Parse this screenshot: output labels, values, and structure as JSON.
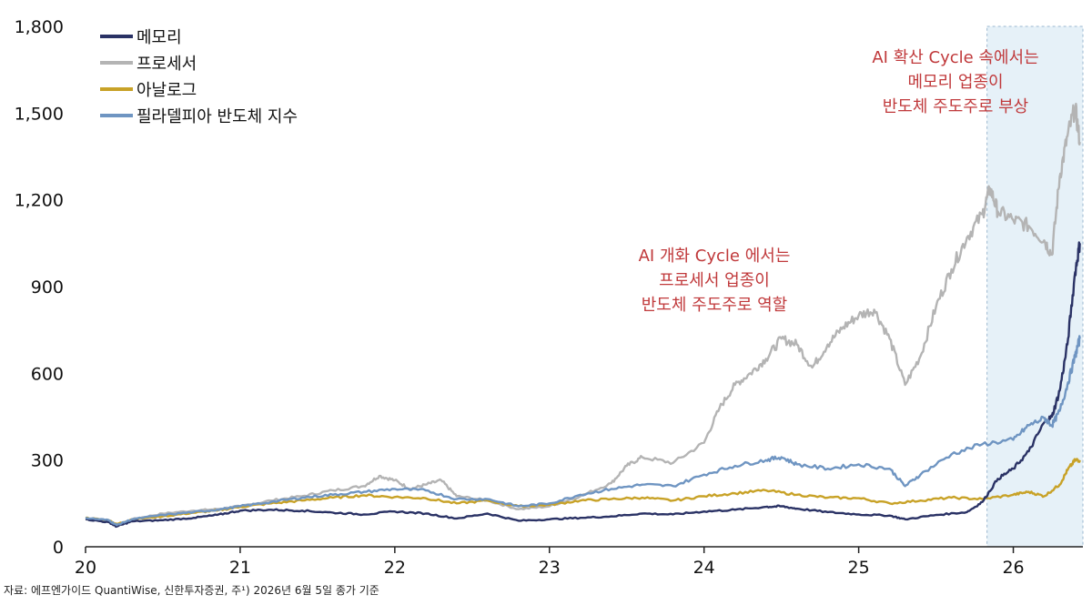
{
  "chart_data": {
    "type": "line",
    "xlim": [
      20,
      26.45
    ],
    "ylim": [
      0,
      1800
    ],
    "x_ticks": [
      20,
      21,
      22,
      23,
      24,
      25,
      26
    ],
    "x_tick_labels": [
      "20",
      "21",
      "22",
      "23",
      "24",
      "25",
      "26"
    ],
    "y_ticks": [
      0,
      300,
      600,
      900,
      1200,
      1500,
      1800
    ],
    "y_tick_labels": [
      "0",
      "300",
      "600",
      "900",
      "1,200",
      "1,500",
      "1,800"
    ],
    "legend_position": "top-left",
    "highlight_range": [
      25.83,
      26.45
    ],
    "series": [
      {
        "name": "메모리",
        "color": "#2a3265",
        "x": [
          20.0,
          20.15,
          20.2,
          20.3,
          20.5,
          20.7,
          20.85,
          21.0,
          21.2,
          21.4,
          21.6,
          21.8,
          22.0,
          22.2,
          22.4,
          22.6,
          22.8,
          23.0,
          23.2,
          23.4,
          23.6,
          23.8,
          24.0,
          24.2,
          24.4,
          24.5,
          24.6,
          24.8,
          25.0,
          25.2,
          25.3,
          25.5,
          25.7,
          25.8,
          25.9,
          26.0,
          26.1,
          26.2,
          26.25,
          26.3,
          26.35,
          26.4,
          26.43
        ],
        "values": [
          95,
          85,
          70,
          88,
          92,
          100,
          110,
          125,
          128,
          125,
          118,
          112,
          122,
          115,
          98,
          115,
          90,
          95,
          100,
          105,
          115,
          112,
          122,
          128,
          138,
          140,
          132,
          120,
          112,
          108,
          95,
          110,
          120,
          155,
          235,
          270,
          330,
          430,
          450,
          540,
          700,
          950,
          1050
        ]
      },
      {
        "name": "프로세서",
        "color": "#b4b4b4",
        "x": [
          20.0,
          20.15,
          20.2,
          20.3,
          20.5,
          20.7,
          20.85,
          21.0,
          21.2,
          21.4,
          21.6,
          21.8,
          21.9,
          22.0,
          22.1,
          22.2,
          22.3,
          22.4,
          22.6,
          22.8,
          23.0,
          23.2,
          23.4,
          23.5,
          23.6,
          23.8,
          24.0,
          24.1,
          24.2,
          24.3,
          24.4,
          24.5,
          24.6,
          24.7,
          24.8,
          24.9,
          25.0,
          25.1,
          25.2,
          25.3,
          25.4,
          25.5,
          25.6,
          25.7,
          25.8,
          25.85,
          25.9,
          26.0,
          26.1,
          26.2,
          26.25,
          26.3,
          26.35,
          26.4,
          26.43
        ],
        "values": [
          95,
          90,
          72,
          95,
          115,
          125,
          130,
          140,
          160,
          175,
          195,
          210,
          245,
          230,
          200,
          215,
          230,
          175,
          160,
          130,
          140,
          175,
          220,
          280,
          310,
          290,
          360,
          480,
          560,
          600,
          650,
          720,
          700,
          620,
          700,
          760,
          800,
          820,
          720,
          560,
          660,
          830,
          960,
          1070,
          1150,
          1240,
          1160,
          1130,
          1110,
          1060,
          1010,
          1280,
          1420,
          1520,
          1400
        ]
      },
      {
        "name": "아날로그",
        "color": "#c8a227",
        "x": [
          20.0,
          20.15,
          20.2,
          20.3,
          20.5,
          20.7,
          20.85,
          21.0,
          21.2,
          21.4,
          21.6,
          21.8,
          22.0,
          22.2,
          22.4,
          22.6,
          22.8,
          23.0,
          23.2,
          23.4,
          23.6,
          23.8,
          24.0,
          24.2,
          24.4,
          24.6,
          24.8,
          25.0,
          25.2,
          25.4,
          25.6,
          25.8,
          26.0,
          26.1,
          26.2,
          26.3,
          26.35,
          26.4,
          26.43
        ],
        "values": [
          100,
          92,
          78,
          95,
          105,
          118,
          125,
          138,
          150,
          160,
          170,
          178,
          172,
          168,
          150,
          160,
          140,
          145,
          160,
          165,
          170,
          160,
          175,
          185,
          195,
          180,
          170,
          168,
          150,
          160,
          170,
          165,
          180,
          190,
          175,
          215,
          265,
          300,
          300
        ]
      },
      {
        "name": "필라델피아 반도체 지수",
        "color": "#6f95c2",
        "x": [
          20.0,
          20.15,
          20.2,
          20.3,
          20.5,
          20.7,
          20.85,
          21.0,
          21.2,
          21.4,
          21.6,
          21.8,
          22.0,
          22.2,
          22.4,
          22.6,
          22.8,
          23.0,
          23.2,
          23.4,
          23.6,
          23.8,
          24.0,
          24.2,
          24.4,
          24.5,
          24.6,
          24.8,
          25.0,
          25.2,
          25.3,
          25.4,
          25.6,
          25.8,
          26.0,
          26.1,
          26.2,
          26.25,
          26.3,
          26.35,
          26.4,
          26.43
        ],
        "values": [
          100,
          92,
          75,
          95,
          110,
          120,
          128,
          140,
          155,
          170,
          180,
          190,
          200,
          195,
          165,
          165,
          140,
          150,
          180,
          200,
          215,
          210,
          250,
          280,
          300,
          310,
          285,
          270,
          285,
          270,
          210,
          250,
          320,
          355,
          370,
          420,
          445,
          420,
          470,
          560,
          660,
          720
        ]
      }
    ]
  },
  "annotations": [
    {
      "lines": [
        "AI 개화 Cycle 에서는",
        "프로세서 업종이",
        "반도체 주도주로 역할"
      ]
    },
    {
      "lines": [
        "AI 확산 Cycle 속에서는",
        "메모리 업종이",
        "반도체 주도주로 부상"
      ]
    }
  ],
  "source": {
    "text": "자료: 에프엔가이드 QuantiWise, 신한투자증권, 주¹) 2026년 6월 5일 종가 기준"
  }
}
